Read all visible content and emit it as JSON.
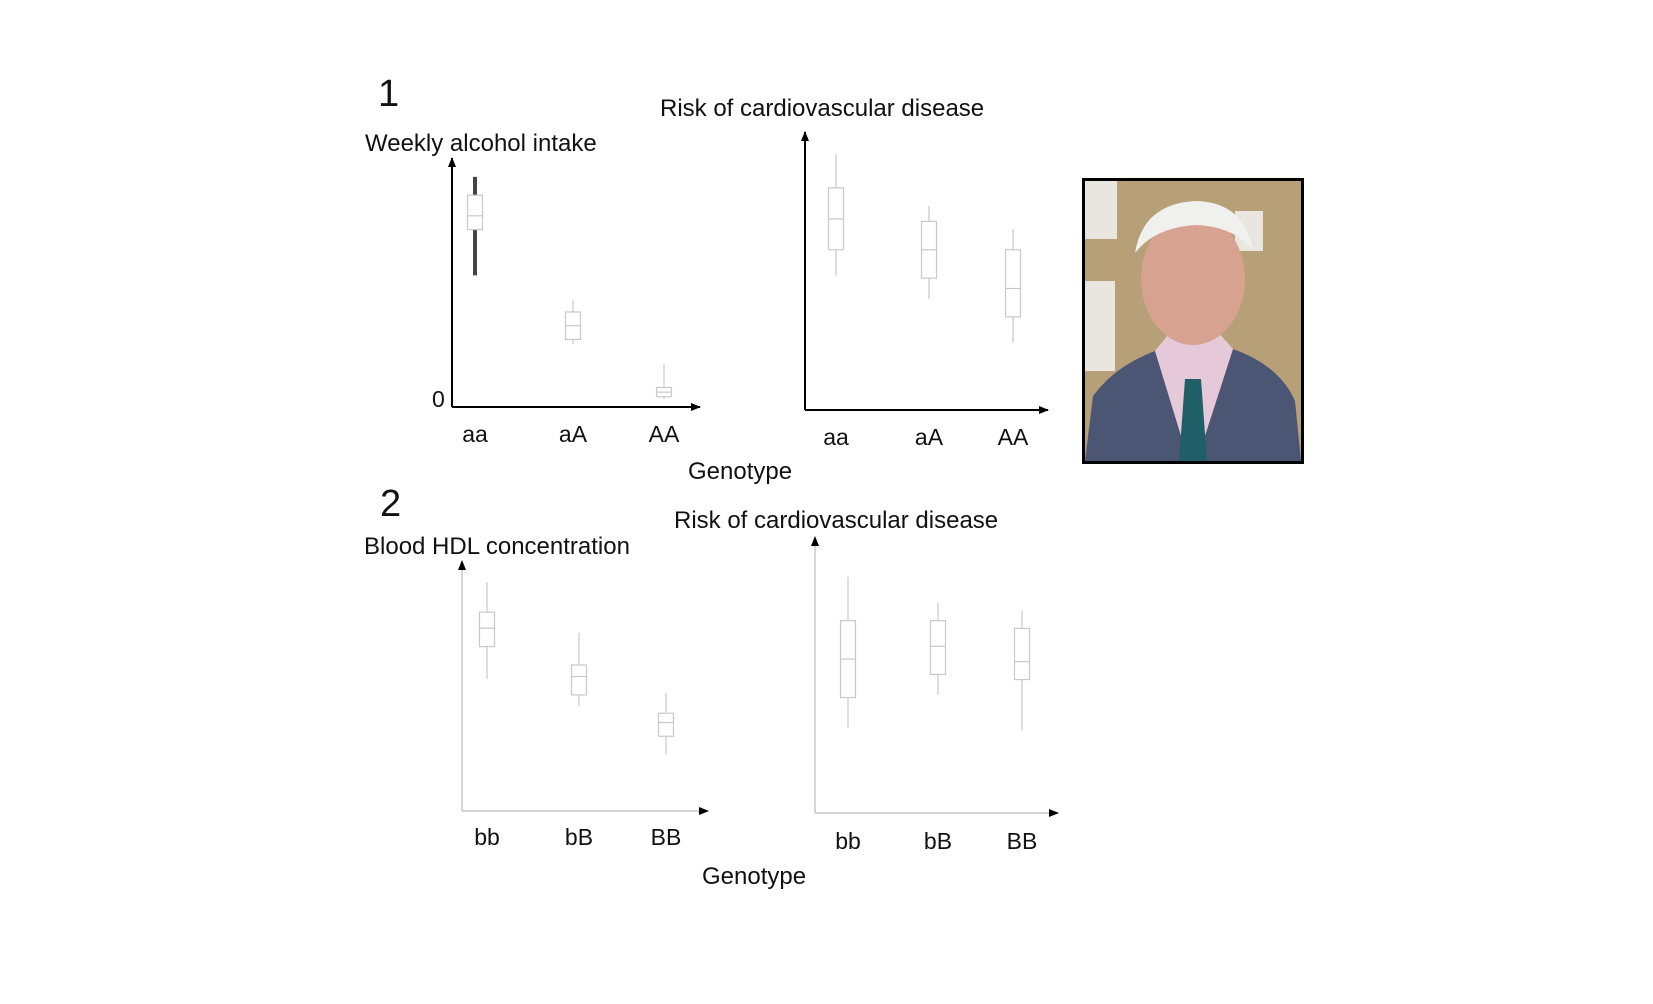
{
  "panels": [
    {
      "number": "1",
      "shared_xlabel": "Genotype",
      "charts": [
        {
          "title": "Weekly alcohol intake",
          "y_tick_label": "0",
          "highlight": true
        },
        {
          "title": "Risk of cardiovascular disease",
          "y_tick_label": "",
          "highlight": false
        }
      ]
    },
    {
      "number": "2",
      "shared_xlabel": "Genotype",
      "charts": [
        {
          "title": "Blood HDL concentration",
          "y_tick_label": "",
          "highlight": false
        },
        {
          "title": "Risk of cardiovascular disease",
          "y_tick_label": "",
          "highlight": false
        }
      ]
    }
  ],
  "chart_data": [
    {
      "type": "box",
      "title": "Weekly alcohol intake",
      "xlabel": "Genotype",
      "ylabel": "Weekly alcohol intake",
      "ylim": [
        0,
        10
      ],
      "categories": [
        "aa",
        "aA",
        "AA"
      ],
      "boxes": [
        {
          "min": 5.4,
          "q1": 7.4,
          "median": 8.0,
          "q3": 8.9,
          "max": 9.7
        },
        {
          "min": 2.4,
          "q1": 2.6,
          "median": 3.2,
          "q3": 3.8,
          "max": 4.3
        },
        {
          "min": 0.0,
          "q1": 0.1,
          "median": 0.3,
          "q3": 0.5,
          "max": 1.5
        }
      ]
    },
    {
      "type": "box",
      "title": "Risk of cardiovascular disease",
      "xlabel": "Genotype",
      "ylabel": "Risk of cardiovascular disease",
      "ylim": [
        0,
        10
      ],
      "categories": [
        "aa",
        "aA",
        "AA"
      ],
      "boxes": [
        {
          "min": 4.9,
          "q1": 5.9,
          "median": 7.1,
          "q3": 8.3,
          "max": 9.6
        },
        {
          "min": 4.0,
          "q1": 4.8,
          "median": 5.9,
          "q3": 7.0,
          "max": 7.6
        },
        {
          "min": 2.3,
          "q1": 3.3,
          "median": 4.4,
          "q3": 5.9,
          "max": 6.7
        }
      ]
    },
    {
      "type": "box",
      "title": "Blood HDL concentration",
      "xlabel": "Genotype",
      "ylabel": "Blood HDL concentration",
      "ylim": [
        0,
        10
      ],
      "categories": [
        "bb",
        "bB",
        "BB"
      ],
      "boxes": [
        {
          "min": 5.4,
          "q1": 6.8,
          "median": 7.6,
          "q3": 8.3,
          "max": 9.6
        },
        {
          "min": 4.2,
          "q1": 4.7,
          "median": 5.5,
          "q3": 6.0,
          "max": 7.4
        },
        {
          "min": 2.1,
          "q1": 2.9,
          "median": 3.5,
          "q3": 3.9,
          "max": 4.8
        }
      ]
    },
    {
      "type": "box",
      "title": "Risk of cardiovascular disease",
      "xlabel": "Genotype",
      "ylabel": "Risk of cardiovascular disease",
      "ylim": [
        0,
        10
      ],
      "categories": [
        "bb",
        "bB",
        "BB"
      ],
      "boxes": [
        {
          "min": 3.0,
          "q1": 4.2,
          "median": 5.7,
          "q3": 7.2,
          "max": 8.9
        },
        {
          "min": 4.3,
          "q1": 5.1,
          "median": 6.2,
          "q3": 7.2,
          "max": 7.9
        },
        {
          "min": 2.9,
          "q1": 4.9,
          "median": 5.6,
          "q3": 6.9,
          "max": 7.6
        }
      ]
    }
  ],
  "photo": {
    "icon": "portrait-photo-icon",
    "colors": {
      "background_wall": "#b79f77",
      "window": "#e9e6df",
      "jacket": "#4b5574",
      "shirt": "#e6c9d8",
      "tie": "#1f5f67",
      "hair": "#f0f0ee",
      "skin": "#d7a390",
      "frame": "#000000"
    }
  }
}
